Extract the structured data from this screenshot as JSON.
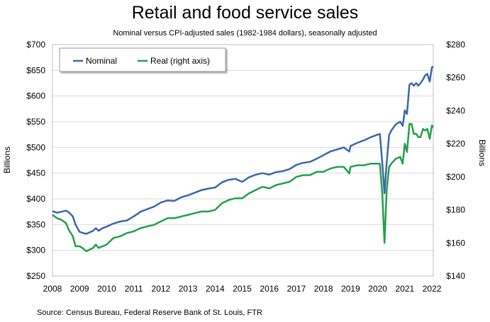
{
  "chart_data": {
    "type": "line",
    "title": "Retail and food service sales",
    "subtitle": "Nominal versus CPI-adjusted sales (1982-1984 dollars), seasonally adjusted",
    "source": "Source: Census Bureau, Federal Reserve Bank of St. Louis, FTR",
    "ylabel_left": "Billions",
    "ylabel_right": "Billions",
    "ylim_left": [
      250,
      700
    ],
    "ylim_right": [
      140,
      280
    ],
    "xlim": [
      2008,
      2022.05
    ],
    "yticks_left": [
      "$250",
      "$300",
      "$350",
      "$400",
      "$450",
      "$500",
      "$550",
      "$600",
      "$650",
      "$700"
    ],
    "yticks_right": [
      "$140",
      "$160",
      "$180",
      "$200",
      "$220",
      "$240",
      "$260",
      "$280"
    ],
    "xticks": [
      "2008",
      "2009",
      "2010",
      "2011",
      "2012",
      "2013",
      "2014",
      "2015",
      "2016",
      "2017",
      "2018",
      "2019",
      "2020",
      "2021",
      "2022"
    ],
    "grid": true,
    "legend_position": "top-left",
    "series": [
      {
        "name": "Nominal",
        "axis": "left",
        "color": "#3a67ad",
        "x": [
          2008.0,
          2008.17,
          2008.33,
          2008.5,
          2008.6,
          2008.75,
          2008.85,
          2009.0,
          2009.1,
          2009.25,
          2009.5,
          2009.6,
          2009.7,
          2009.85,
          2010.0,
          2010.25,
          2010.5,
          2010.75,
          2011.0,
          2011.25,
          2011.5,
          2011.75,
          2012.0,
          2012.25,
          2012.5,
          2012.75,
          2013.0,
          2013.25,
          2013.5,
          2013.75,
          2014.0,
          2014.25,
          2014.5,
          2014.75,
          2015.0,
          2015.25,
          2015.5,
          2015.75,
          2016.0,
          2016.25,
          2016.5,
          2016.75,
          2017.0,
          2017.25,
          2017.5,
          2017.75,
          2018.0,
          2018.25,
          2018.5,
          2018.75,
          2018.95,
          2019.0,
          2019.25,
          2019.5,
          2019.75,
          2020.0,
          2020.08,
          2020.17,
          2020.25,
          2020.33,
          2020.42,
          2020.5,
          2020.67,
          2020.83,
          2020.92,
          2021.0,
          2021.08,
          2021.17,
          2021.25,
          2021.33,
          2021.42,
          2021.5,
          2021.58,
          2021.67,
          2021.75,
          2021.83,
          2021.92,
          2022.0,
          2022.05
        ],
        "values": [
          376,
          373,
          375,
          377,
          374,
          366,
          350,
          336,
          334,
          332,
          338,
          343,
          338,
          343,
          346,
          352,
          356,
          358,
          366,
          375,
          380,
          385,
          393,
          397,
          396,
          403,
          407,
          412,
          417,
          420,
          422,
          432,
          437,
          439,
          433,
          442,
          447,
          450,
          447,
          452,
          454,
          458,
          466,
          470,
          472,
          478,
          485,
          492,
          496,
          500,
          492,
          503,
          509,
          514,
          520,
          525,
          526,
          470,
          411,
          470,
          524,
          533,
          545,
          550,
          542,
          572,
          565,
          622,
          625,
          620,
          625,
          620,
          625,
          632,
          640,
          643,
          628,
          656,
          657
        ]
      },
      {
        "name": "Real (right axis)",
        "axis": "right",
        "color": "#22a04b",
        "x": [
          2008.0,
          2008.17,
          2008.33,
          2008.5,
          2008.6,
          2008.75,
          2008.85,
          2009.0,
          2009.1,
          2009.25,
          2009.5,
          2009.6,
          2009.7,
          2009.85,
          2010.0,
          2010.25,
          2010.5,
          2010.75,
          2011.0,
          2011.25,
          2011.5,
          2011.75,
          2012.0,
          2012.25,
          2012.5,
          2012.75,
          2013.0,
          2013.25,
          2013.5,
          2013.75,
          2014.0,
          2014.25,
          2014.5,
          2014.75,
          2015.0,
          2015.25,
          2015.5,
          2015.75,
          2016.0,
          2016.25,
          2016.5,
          2016.75,
          2017.0,
          2017.25,
          2017.5,
          2017.75,
          2018.0,
          2018.25,
          2018.5,
          2018.75,
          2018.95,
          2019.0,
          2019.25,
          2019.5,
          2019.75,
          2020.0,
          2020.08,
          2020.17,
          2020.25,
          2020.33,
          2020.42,
          2020.5,
          2020.67,
          2020.83,
          2020.92,
          2021.0,
          2021.08,
          2021.17,
          2021.25,
          2021.33,
          2021.42,
          2021.5,
          2021.58,
          2021.67,
          2021.75,
          2021.83,
          2021.92,
          2022.0,
          2022.05
        ],
        "values": [
          177,
          175,
          174,
          172,
          168,
          164,
          158,
          158,
          157,
          155,
          157,
          159,
          157,
          158,
          159,
          163,
          164,
          166,
          167,
          169,
          170,
          171,
          173,
          175,
          175,
          176,
          177,
          178,
          179,
          179,
          180,
          184,
          186,
          187,
          187,
          190,
          192,
          194,
          193,
          195,
          196,
          197,
          200,
          201,
          201,
          203,
          203,
          205,
          206,
          206,
          202,
          206,
          207,
          207,
          208,
          208,
          208,
          190,
          160,
          192,
          206,
          208,
          211,
          212,
          208,
          220,
          215,
          232,
          232,
          226,
          226,
          224,
          224,
          229,
          228,
          229,
          223,
          231,
          230
        ]
      }
    ]
  }
}
